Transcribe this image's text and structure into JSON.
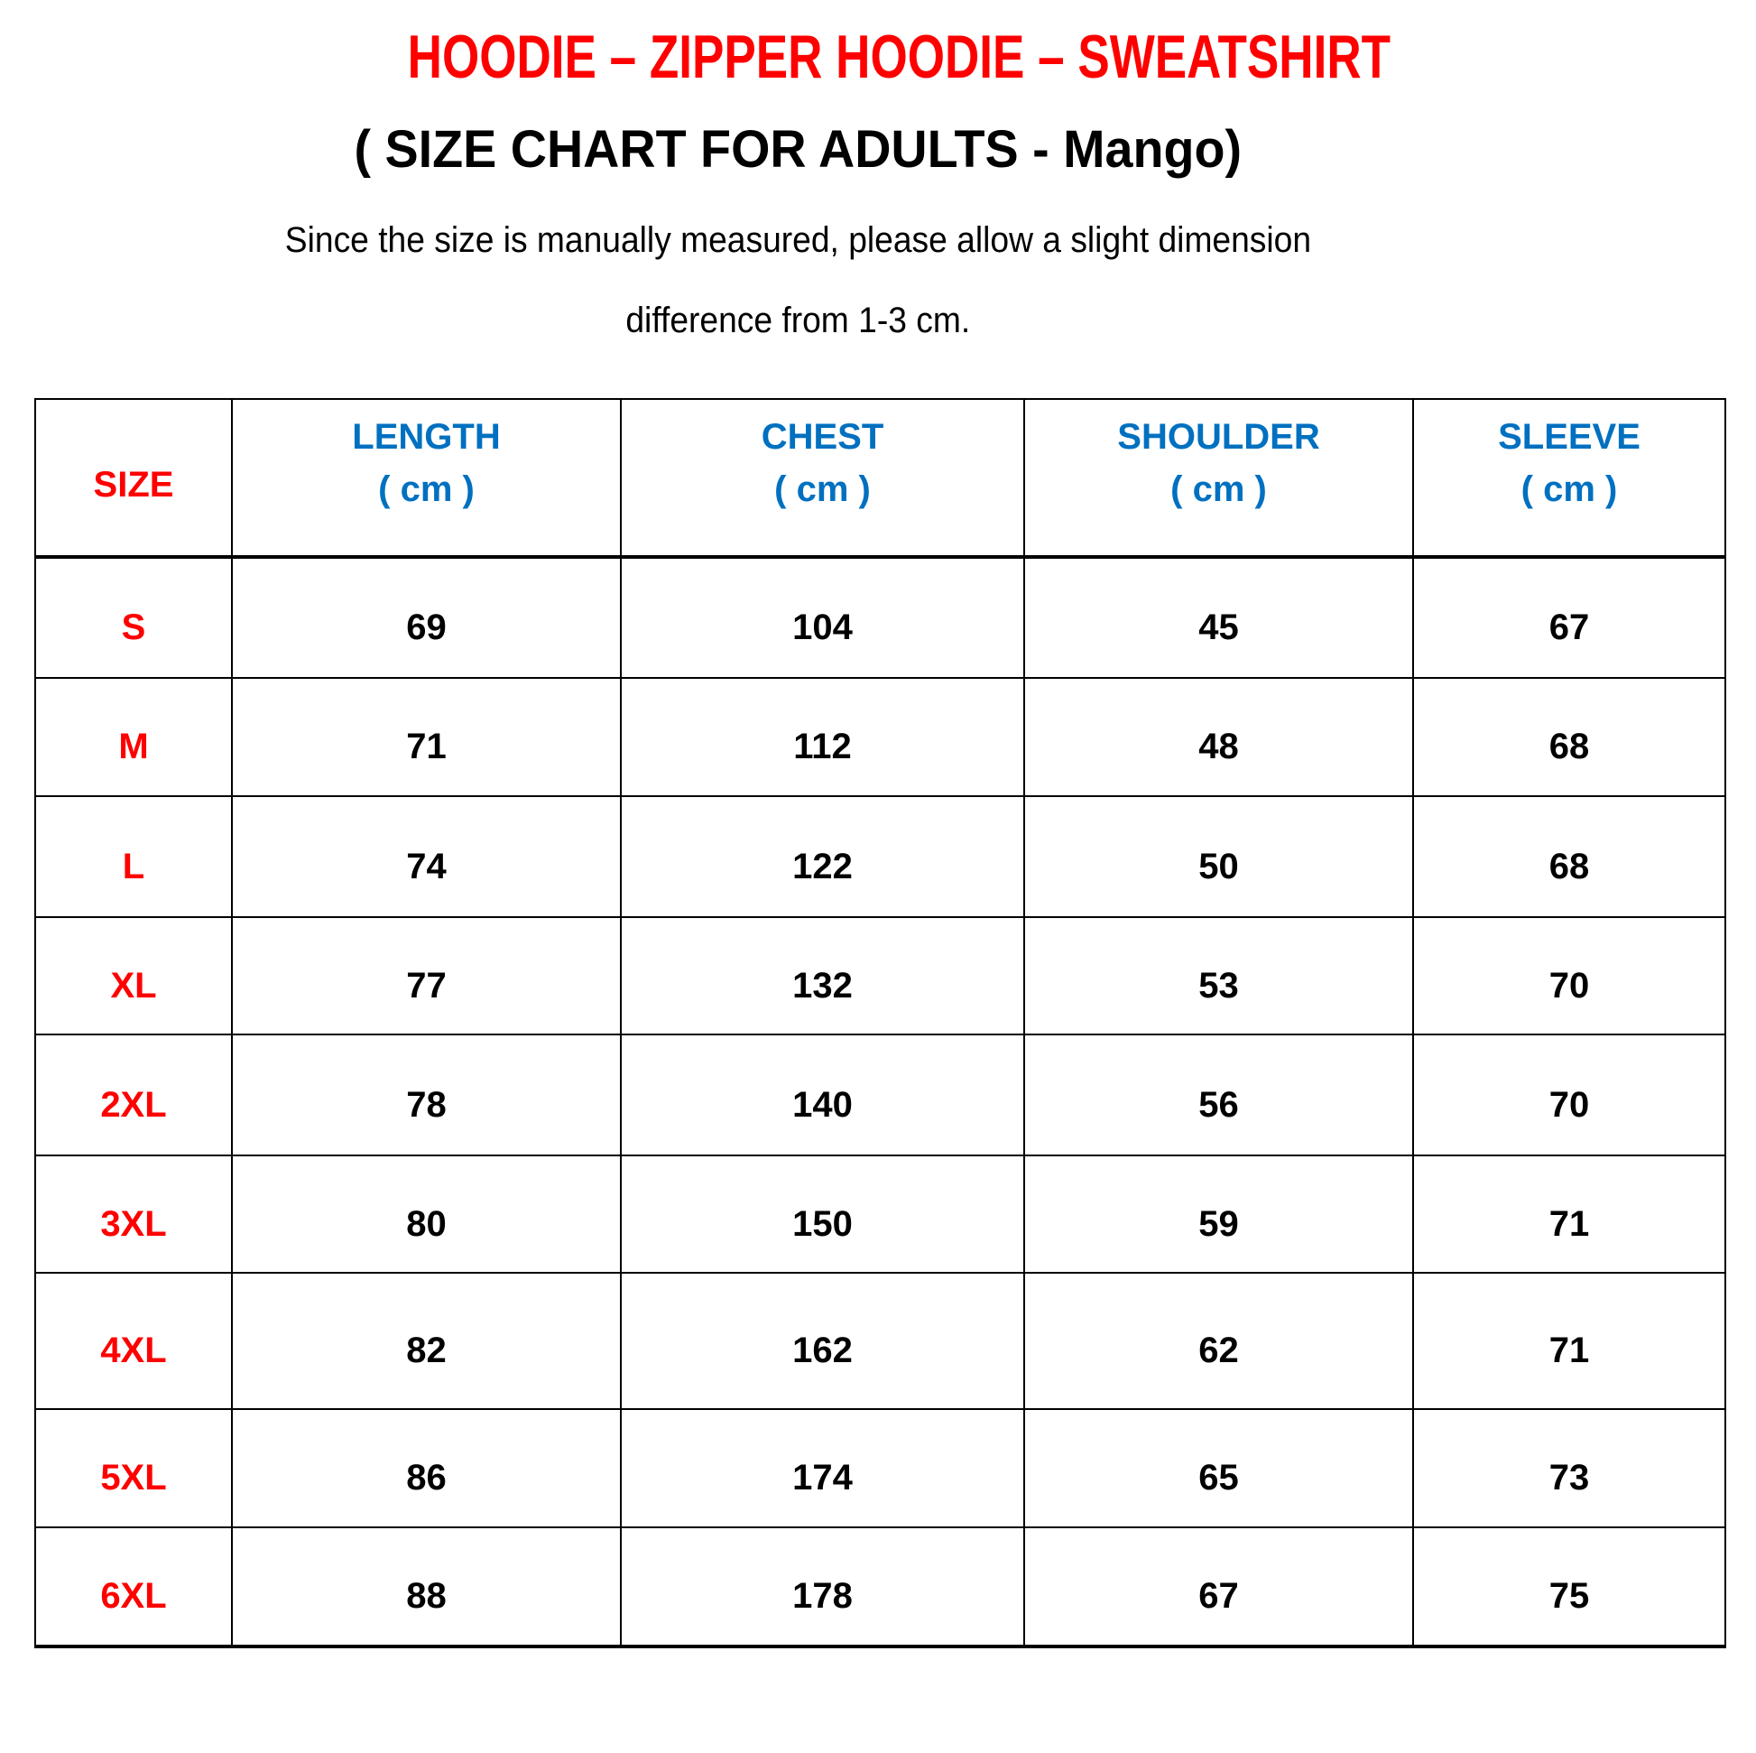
{
  "title": "HOODIE – ZIPPER HOODIE – SWEATSHIRT",
  "subtitle": "( SIZE CHART FOR ADULTS - Mango)",
  "note_line1": "Since the size is manually measured, please allow a slight dimension",
  "note_line2": "difference from 1-3 cm.",
  "colors": {
    "title": "#ff0000",
    "size_label": "#ff0000",
    "header": "#0070c0",
    "text": "#000000"
  },
  "table": {
    "size_header": "SIZE",
    "columns": [
      {
        "name": "LENGTH",
        "unit": "( cm )"
      },
      {
        "name": "CHEST",
        "unit": "( cm )"
      },
      {
        "name": "SHOULDER",
        "unit": "( cm )"
      },
      {
        "name": "SLEEVE",
        "unit": "( cm )"
      }
    ],
    "rows": [
      {
        "size": "S",
        "values": [
          "69",
          "104",
          "45",
          "67"
        ]
      },
      {
        "size": "M",
        "values": [
          "71",
          "112",
          "48",
          "68"
        ]
      },
      {
        "size": "L",
        "values": [
          "74",
          "122",
          "50",
          "68"
        ]
      },
      {
        "size": "XL",
        "values": [
          "77",
          "132",
          "53",
          "70"
        ]
      },
      {
        "size": "2XL",
        "values": [
          "78",
          "140",
          "56",
          "70"
        ]
      },
      {
        "size": "3XL",
        "values": [
          "80",
          "150",
          "59",
          "71"
        ]
      },
      {
        "size": "4XL",
        "values": [
          "82",
          "162",
          "62",
          "71"
        ]
      },
      {
        "size": "5XL",
        "values": [
          "86",
          "174",
          "65",
          "73"
        ]
      },
      {
        "size": "6XL",
        "values": [
          "88",
          "178",
          "67",
          "75"
        ]
      }
    ]
  }
}
